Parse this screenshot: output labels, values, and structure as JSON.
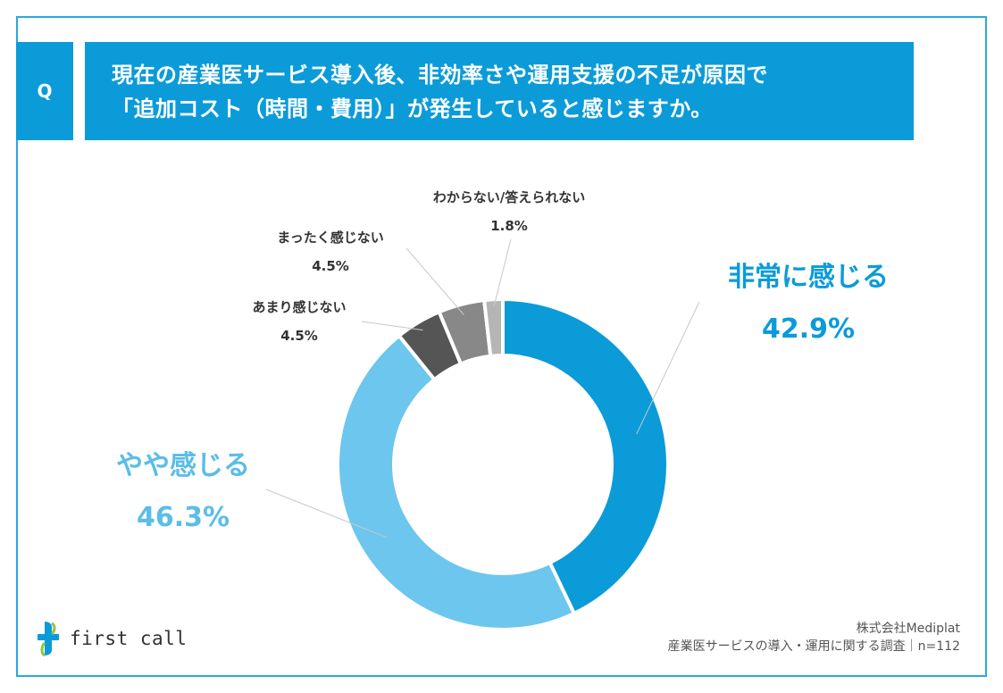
{
  "question": {
    "badge": "Q",
    "line1": "現在の産業医サービス導入後、非効率さや運用支援の不足が原因で",
    "line2": "「追加コスト（時間・費用）」が発生していると感じますか。"
  },
  "chart_data": {
    "type": "pie",
    "variant": "donut",
    "title": "現在の産業医サービス導入後、非効率さや運用支援の不足が原因で「追加コスト（時間・費用）」が発生していると感じますか。",
    "slices": [
      {
        "label": "非常に感じる",
        "value": 42.9,
        "display": "42.9%",
        "color": "#0b9bd9"
      },
      {
        "label": "やや感じる",
        "value": 46.3,
        "display": "46.3%",
        "color": "#6cc6ee"
      },
      {
        "label": "あまり感じない",
        "value": 4.5,
        "display": "4.5%",
        "color": "#555555"
      },
      {
        "label": "まったく感じない",
        "value": 4.5,
        "display": "4.5%",
        "color": "#888888"
      },
      {
        "label": "わからない/答えられない",
        "value": 1.8,
        "display": "1.8%",
        "color": "#b5b5b5"
      }
    ],
    "n_label": "n=112"
  },
  "logo": {
    "text": "first call"
  },
  "footer": {
    "company": "株式会社Mediplat",
    "survey": "産業医サービスの導入・運用に関する調査｜n=112"
  },
  "colors": {
    "accent": "#0b9bd9",
    "accent_light": "#6cc6ee",
    "frame": "#2aa9dd"
  }
}
